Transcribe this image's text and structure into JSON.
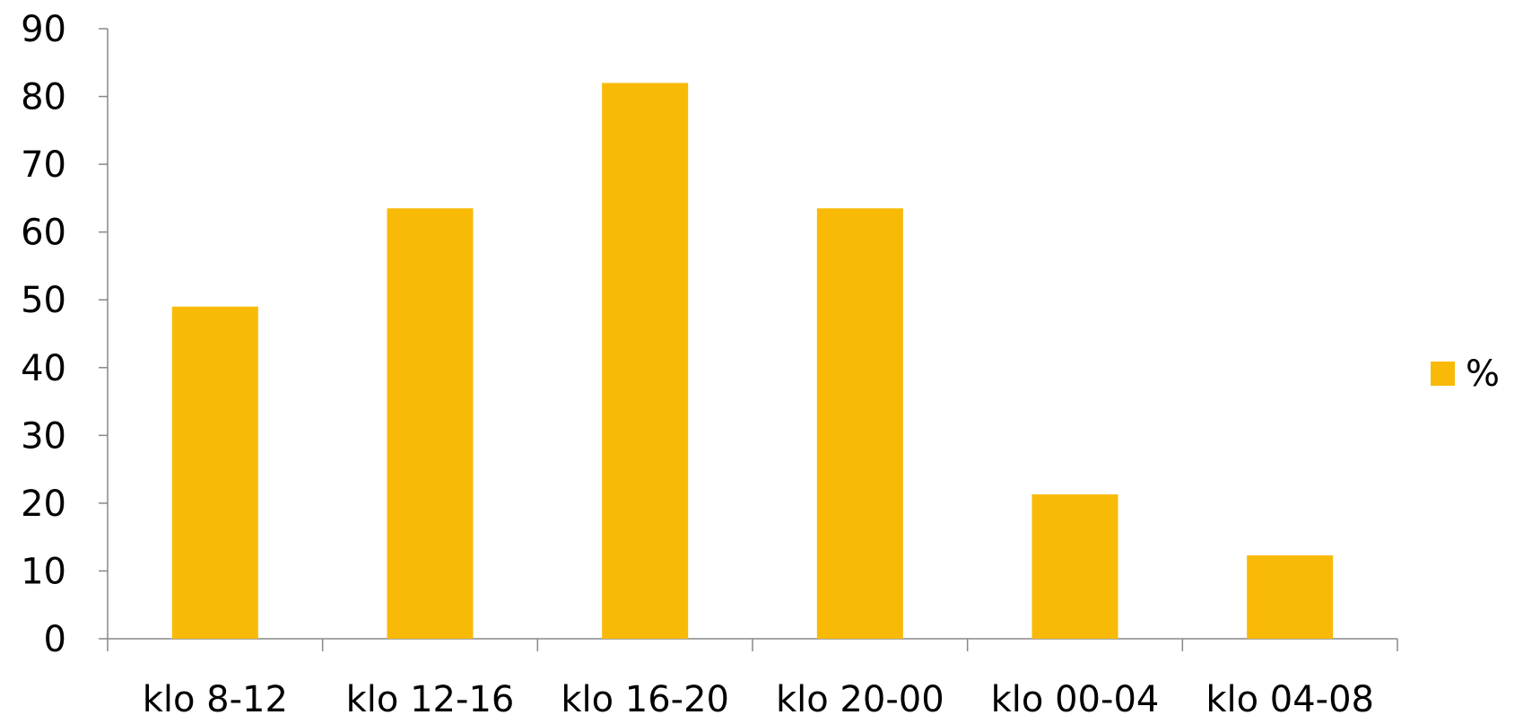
{
  "chart_data": {
    "type": "bar",
    "categories": [
      "klo 8-12",
      "klo 12-16",
      "klo 16-20",
      "klo 20-00",
      "klo 00-04",
      "klo 04-08"
    ],
    "series": [
      {
        "name": "%",
        "values": [
          49,
          63.5,
          82,
          63.5,
          21.3,
          12.3
        ],
        "color": "#F9BA07"
      }
    ],
    "ylim": [
      0,
      90
    ],
    "yticks": [
      0,
      10,
      20,
      30,
      40,
      50,
      60,
      70,
      80,
      90
    ],
    "legend_position": "right",
    "grid": false,
    "axis_color": "#888888"
  }
}
